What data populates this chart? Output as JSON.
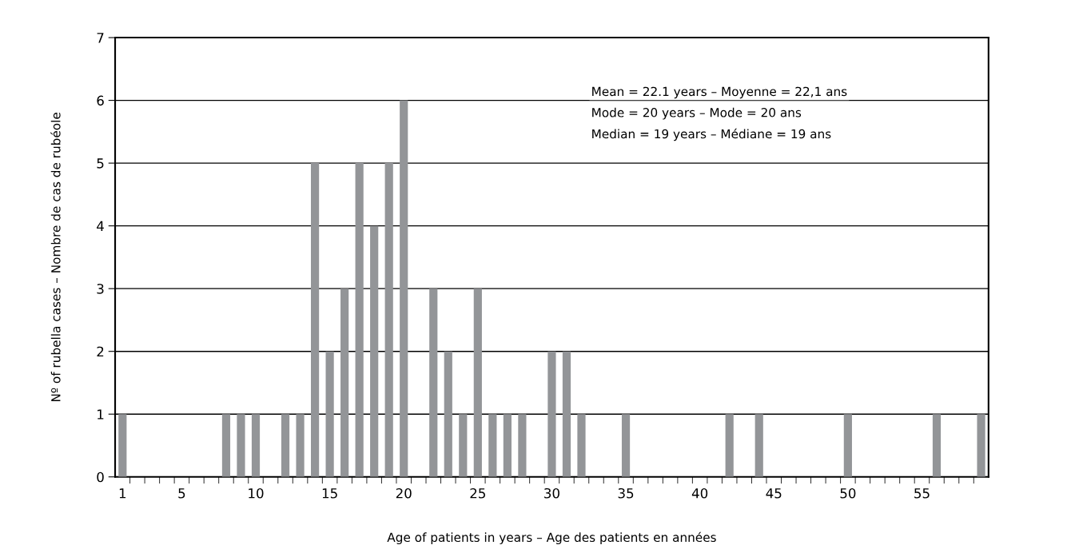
{
  "chart_data": {
    "type": "bar",
    "xlabel": "Age of patients in years – Age des patients en années",
    "ylabel": "Nº of rubella cases – Nombre de cas de rubéole",
    "x": [
      1,
      8,
      9,
      10,
      12,
      13,
      14,
      15,
      16,
      17,
      18,
      19,
      20,
      22,
      23,
      24,
      25,
      26,
      27,
      28,
      30,
      31,
      32,
      35,
      42,
      44,
      50,
      56,
      59
    ],
    "values": [
      1,
      1,
      1,
      1,
      1,
      1,
      5,
      2,
      3,
      5,
      4,
      5,
      6,
      3,
      2,
      1,
      3,
      1,
      1,
      1,
      2,
      2,
      1,
      1,
      1,
      1,
      1,
      1,
      1
    ],
    "color": "#939598",
    "xlim": [
      0.5,
      59.5
    ],
    "xticks": [
      {
        "value": 1,
        "label": "1"
      },
      {
        "value": 5,
        "label": "5"
      },
      {
        "value": 10,
        "label": "10"
      },
      {
        "value": 15,
        "label": "15"
      },
      {
        "value": 20,
        "label": "20"
      },
      {
        "value": 25,
        "label": "25"
      },
      {
        "value": 30,
        "label": "30"
      },
      {
        "value": 35,
        "label": "35"
      },
      {
        "value": 40,
        "label": "40"
      },
      {
        "value": 45,
        "label": "45"
      },
      {
        "value": 50,
        "label": "50"
      },
      {
        "value": 55,
        "label": "55"
      },
      {
        "value": 1.5,
        "label": null
      },
      {
        "value": 2.5,
        "label": null
      },
      {
        "value": 3.5,
        "label": null
      },
      {
        "value": 4.5,
        "label": null
      },
      {
        "value": 5.5,
        "label": null
      },
      {
        "value": 6.5,
        "label": null
      },
      {
        "value": 7.5,
        "label": null
      },
      {
        "value": 8.5,
        "label": null
      },
      {
        "value": 9.5,
        "label": null
      },
      {
        "value": 10.5,
        "label": null
      },
      {
        "value": 11.5,
        "label": null
      },
      {
        "value": 12.5,
        "label": null
      },
      {
        "value": 13.5,
        "label": null
      },
      {
        "value": 14.5,
        "label": null
      },
      {
        "value": 15.5,
        "label": null
      },
      {
        "value": 16.5,
        "label": null
      },
      {
        "value": 17.5,
        "label": null
      },
      {
        "value": 18.5,
        "label": null
      },
      {
        "value": 19.5,
        "label": null
      },
      {
        "value": 20.5,
        "label": null
      },
      {
        "value": 21.5,
        "label": null
      },
      {
        "value": 22.5,
        "label": null
      },
      {
        "value": 23.5,
        "label": null
      },
      {
        "value": 24.5,
        "label": null
      },
      {
        "value": 25.5,
        "label": null
      },
      {
        "value": 26.5,
        "label": null
      },
      {
        "value": 27.5,
        "label": null
      },
      {
        "value": 28.5,
        "label": null
      },
      {
        "value": 29.5,
        "label": null
      },
      {
        "value": 30.5,
        "label": null
      },
      {
        "value": 31.5,
        "label": null
      },
      {
        "value": 32.5,
        "label": null
      },
      {
        "value": 33.5,
        "label": null
      },
      {
        "value": 34.5,
        "label": null
      },
      {
        "value": 35.5,
        "label": null
      },
      {
        "value": 36.5,
        "label": null
      },
      {
        "value": 37.5,
        "label": null
      },
      {
        "value": 38.5,
        "label": null
      },
      {
        "value": 39.5,
        "label": null
      },
      {
        "value": 40.5,
        "label": null
      },
      {
        "value": 41.5,
        "label": null
      },
      {
        "value": 42.5,
        "label": null
      },
      {
        "value": 43.5,
        "label": null
      },
      {
        "value": 44.5,
        "label": null
      },
      {
        "value": 45.5,
        "label": null
      },
      {
        "value": 46.5,
        "label": null
      },
      {
        "value": 47.5,
        "label": null
      },
      {
        "value": 48.5,
        "label": null
      },
      {
        "value": 49.5,
        "label": null
      },
      {
        "value": 50.5,
        "label": null
      },
      {
        "value": 51.5,
        "label": null
      },
      {
        "value": 52.5,
        "label": null
      },
      {
        "value": 53.5,
        "label": null
      },
      {
        "value": 54.5,
        "label": null
      },
      {
        "value": 55.5,
        "label": null
      },
      {
        "value": 56.5,
        "label": null
      },
      {
        "value": 57.5,
        "label": null
      },
      {
        "value": 58.5,
        "label": null
      }
    ],
    "ylim": [
      0,
      7
    ],
    "yticks": [
      0,
      1,
      2,
      3,
      4,
      5,
      6,
      7
    ],
    "grid": "y",
    "annotations": [
      "Mean = 22.1 years – Moyenne = 22,1 ans",
      "Mode = 20 years – Mode = 20 ans",
      "Median = 19 years – Médiane = 19 ans"
    ]
  }
}
